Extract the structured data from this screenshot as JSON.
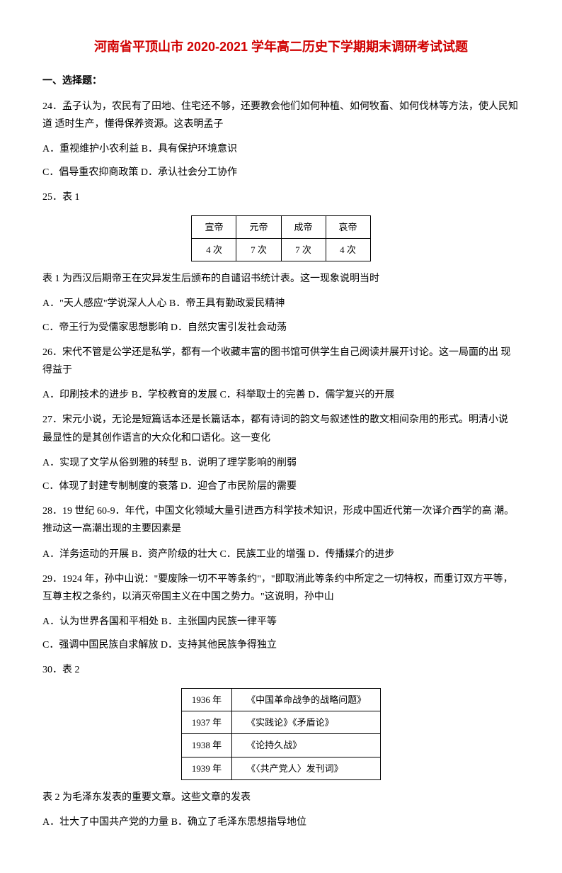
{
  "title": "河南省平顶山市 2020-2021 学年高二历史下学期期末调研考试试题",
  "section1": "一、选择题：",
  "q24": {
    "stem": "24．孟子认为，农民有了田地、住宅还不够，还要教会他们如何种植、如何牧畜、如何伐林等方法，使人民知道 适时生产，懂得保养资源。这表明孟子",
    "line1": "A．重视维护小农利益 B．具有保护环境意识",
    "line2": "C．倡导重农抑商政策 D．承认社会分工协作"
  },
  "q25": {
    "stem": "25．表 1",
    "table": {
      "headers": [
        "宣帝",
        "元帝",
        "成帝",
        "哀帝"
      ],
      "row": [
        "4 次",
        "7 次",
        "7 次",
        "4 次"
      ]
    },
    "after": "表 1 为西汉后期帝王在灾异发生后颁布的自谴诏书统计表。这一现象说明当时",
    "line1": "A．\"天人感应\"学说深人人心 B．帝王具有勤政爱民精神",
    "line2": "C．帝王行为受儒家思想影响 D．自然灾害引发社会动荡"
  },
  "q26": {
    "stem": "26．宋代不管是公学还是私学，都有一个收藏丰富的图书馆可供学生自己阅读并展开讨论。这一局面的出 现得益于",
    "line1": "A．印刷技术的进步 B．学校教育的发展 C．科举取士的完善 D．儒学复兴的开展"
  },
  "q27": {
    "stem": "27．宋元小说，无论是短篇话本还是长篇话本，都有诗词的韵文与叙述性的散文相间杂用的形式。明清小说 最显性的是其创作语言的大众化和口语化。这一变化",
    "line1": "A．实现了文学从俗到雅的转型 B．说明了理学影响的削弱",
    "line2": "C．体现了封建专制制度的衰落 D．迎合了市民阶层的需要"
  },
  "q28": {
    "stem": " 28．19 世纪 60-9．年代，中国文化领域大量引进西方科学技术知识，形成中国近代第一次译介西学的高 潮。推动这一高潮出现的主要因素是",
    "line1": "A．洋务运动的开展 B．资产阶级的壮大 C．民族工业的增强 D．传播媒介的进步"
  },
  "q29": {
    "stem": " 29．1924 年，孙中山说：\"要废除一切不平等条约\"，\"即取消此等条约中所定之一切特权，而重订双方平等， 互尊主权之条约，以消灭帝国主义在中国之势力。\"这说明，孙中山",
    "line1": "A．认为世界各国和平相处 B．主张国内民族一律平等",
    "line2": " C．强调中国民族自求解放 D．支持其他民族争得独立"
  },
  "q30": {
    "stem": " 30．表 2",
    "table": {
      "rows": [
        [
          "1936 年",
          "《中国革命战争的战略问题》"
        ],
        [
          "1937 年",
          "《实践论》《矛盾论》"
        ],
        [
          "1938 年",
          "《论持久战》"
        ],
        [
          "1939 年",
          "《〈共产党人〉发刊词》"
        ]
      ]
    },
    "after": "表 2 为毛泽东发表的重要文章。这些文章的发表",
    "line1": "A．壮大了中国共产党的力量 B．确立了毛泽东思想指导地位"
  }
}
